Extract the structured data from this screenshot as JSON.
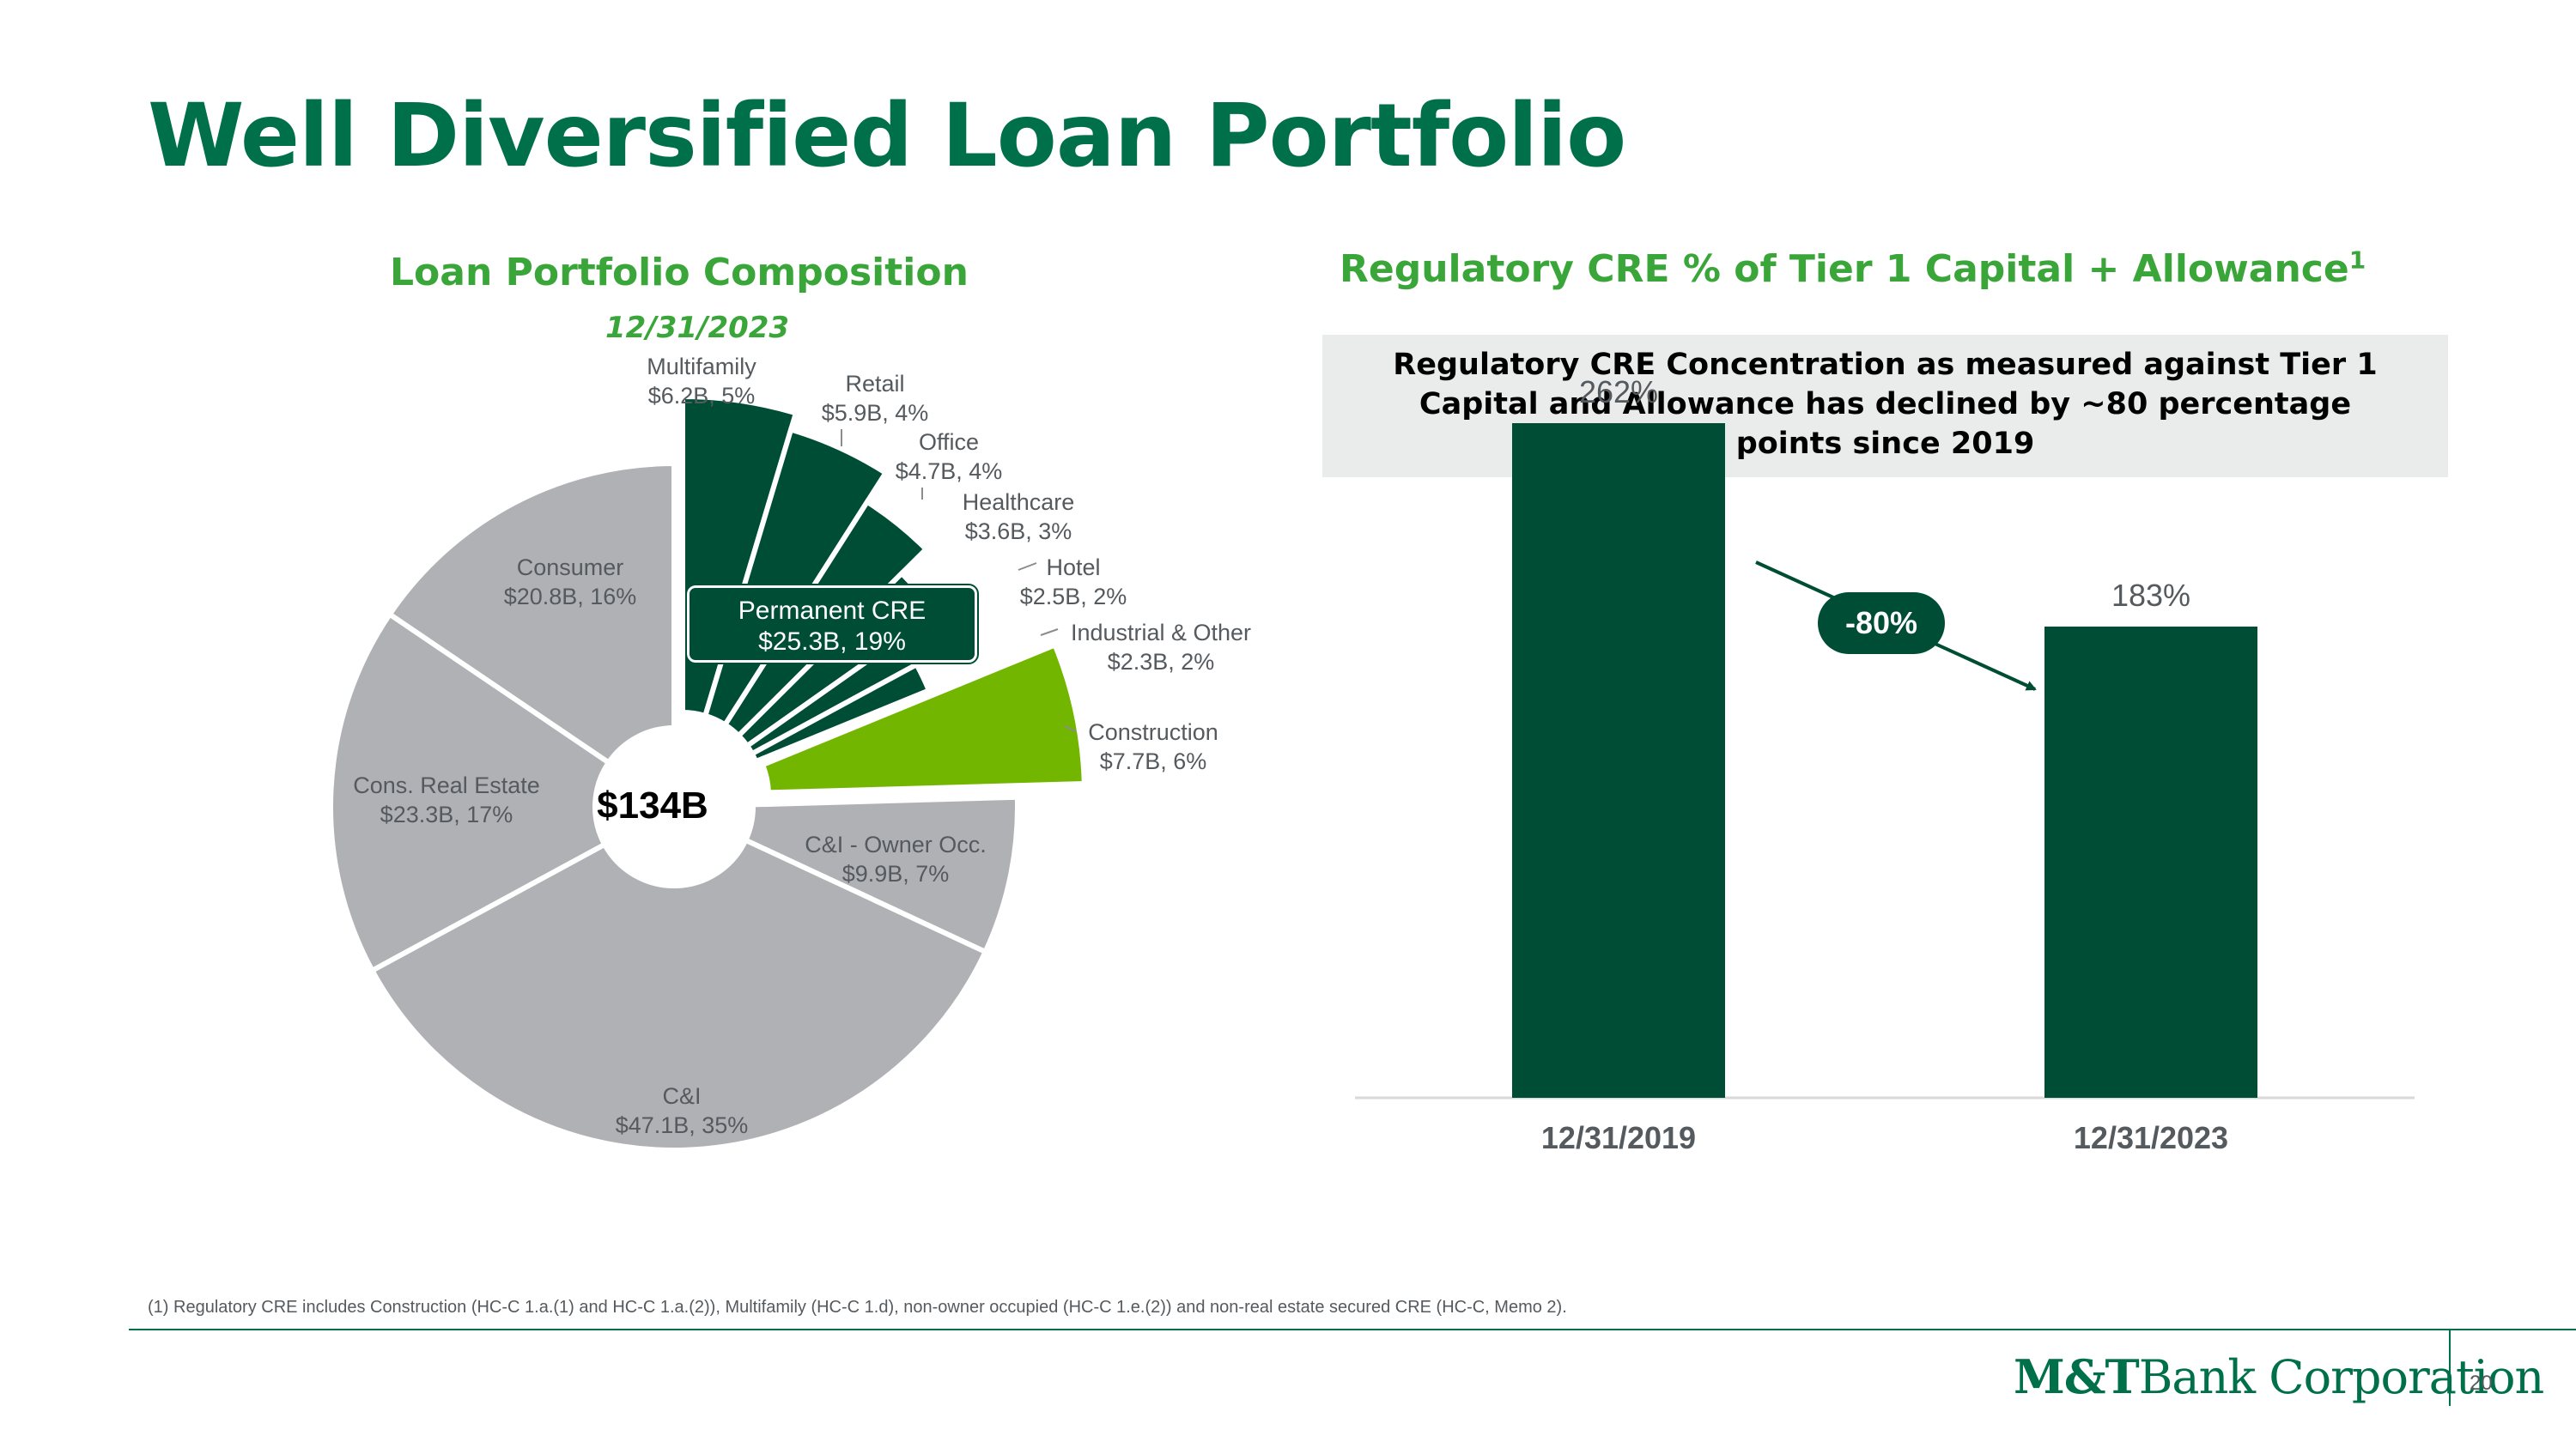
{
  "slide": {
    "title": "Well Diversified Loan Portfolio",
    "page_number": "20",
    "footnote": "(1) Regulatory CRE includes Construction (HC-C 1.a.(1) and HC-C 1.a.(2)), Multifamily (HC-C 1.d), non-owner occupied (HC-C 1.e.(2)) and  non-real estate secured CRE (HC-C, Memo 2).",
    "logo": {
      "bold": "M&T",
      "rest": "Bank Corporation"
    }
  },
  "left_panel": {
    "heading": "Loan Portfolio Composition",
    "date": "12/31/2023",
    "total": "$134B",
    "permanent_cre": {
      "name": "Permanent CRE",
      "value": "$25.3B, 19%"
    }
  },
  "right_panel": {
    "heading": "Regulatory CRE % of Tier 1 Capital + Allowance",
    "heading_sup": "1",
    "callout_lines": [
      "Regulatory CRE Concentration as measured against Tier 1",
      "Capital and Allowance has declined by ~80 percentage",
      "points since 2019"
    ],
    "change_label": "-80%"
  },
  "colors": {
    "title_green": "#00704a",
    "subhead_green": "#3aa63a",
    "dark_green": "#004d36",
    "lime": "#72b600",
    "gray": "#b0b1b4"
  },
  "chart_data": [
    {
      "type": "pie",
      "title": "Loan Portfolio Composition",
      "subtitle": "12/31/2023",
      "center_label": "$134B",
      "slices": [
        {
          "name": "Multifamily",
          "amount": 6.2,
          "percent": 5,
          "label": "$6.2B, 5%",
          "group": "Permanent CRE"
        },
        {
          "name": "Retail",
          "amount": 5.9,
          "percent": 4,
          "label": "$5.9B, 4%",
          "group": "Permanent CRE"
        },
        {
          "name": "Office",
          "amount": 4.7,
          "percent": 4,
          "label": "$4.7B, 4%",
          "group": "Permanent CRE"
        },
        {
          "name": "Healthcare",
          "amount": 3.6,
          "percent": 3,
          "label": "$3.6B, 3%",
          "group": "Permanent CRE"
        },
        {
          "name": "Hotel",
          "amount": 2.5,
          "percent": 2,
          "label": "$2.5B, 2%",
          "group": "Permanent CRE"
        },
        {
          "name": "Industrial & Other",
          "amount": 2.3,
          "percent": 2,
          "label": "$2.3B, 2%",
          "group": "Permanent CRE"
        },
        {
          "name": "Construction",
          "amount": 7.7,
          "percent": 6,
          "label": "$7.7B, 6%",
          "group": ""
        },
        {
          "name": "C&I - Owner Occ.",
          "amount": 9.9,
          "percent": 7,
          "label": "$9.9B, 7%",
          "group": ""
        },
        {
          "name": "C&I",
          "amount": 47.1,
          "percent": 35,
          "label": "$47.1B, 35%",
          "group": ""
        },
        {
          "name": "Cons. Real Estate",
          "amount": 23.3,
          "percent": 17,
          "label": "$23.3B, 17%",
          "group": ""
        },
        {
          "name": "Consumer",
          "amount": 20.8,
          "percent": 16,
          "label": "$20.8B, 16%",
          "group": ""
        }
      ]
    },
    {
      "type": "bar",
      "title": "Regulatory CRE % of Tier 1 Capital + Allowance",
      "categories": [
        "12/31/2019",
        "12/31/2023"
      ],
      "values": [
        262,
        183
      ],
      "value_labels": [
        "262%",
        "183%"
      ],
      "ylim": [
        0,
        300
      ],
      "grid": false,
      "annotation": "-80%"
    }
  ]
}
